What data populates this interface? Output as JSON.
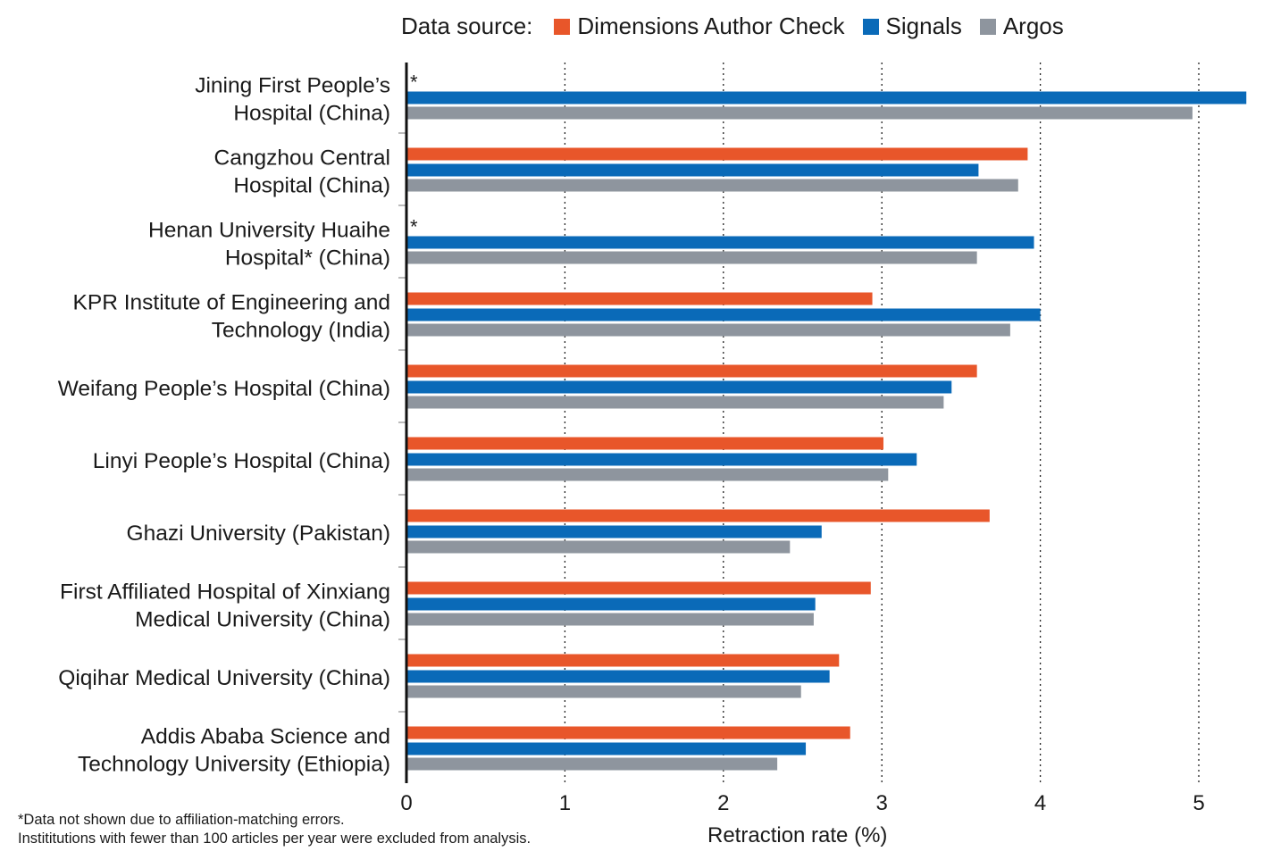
{
  "chart_data": {
    "type": "bar",
    "orientation": "horizontal",
    "legend_title": "Data source:",
    "legend_position": "top",
    "xlabel": "Retraction rate (%)",
    "xlim": [
      0,
      5.3
    ],
    "xticks": [
      "0",
      "1",
      "2",
      "3",
      "4",
      "5"
    ],
    "grid": "vertical dotted",
    "categories": [
      [
        "Jining First People’s",
        "Hospital (China)"
      ],
      [
        "Cangzhou Central",
        "Hospital (China)"
      ],
      [
        "Henan University Huaihe",
        "Hospital* (China)"
      ],
      [
        "KPR Institute of Engineering and",
        "Technology (India)"
      ],
      [
        "Weifang People’s Hospital (China)"
      ],
      [
        "Linyi People’s Hospital (China)"
      ],
      [
        "Ghazi University (Pakistan)"
      ],
      [
        "First Affiliated Hospital of Xinxiang",
        "Medical University (China)"
      ],
      [
        "Qiqihar Medical University (China)"
      ],
      [
        "Addis Ababa Science and",
        "Technology University (Ethiopia)"
      ]
    ],
    "series": [
      {
        "name": "Dimensions Author Check",
        "color": "#e8562a",
        "values": [
          null,
          3.92,
          null,
          2.94,
          3.6,
          3.01,
          3.68,
          2.93,
          2.73,
          2.8
        ]
      },
      {
        "name": "Signals",
        "color": "#0a6ab8",
        "values": [
          5.3,
          3.61,
          3.96,
          4.0,
          3.44,
          3.22,
          2.62,
          2.58,
          2.67,
          2.52
        ]
      },
      {
        "name": "Argos",
        "color": "#8e959e",
        "values": [
          4.96,
          3.86,
          3.6,
          3.81,
          3.39,
          3.04,
          2.42,
          2.57,
          2.49,
          2.34
        ]
      }
    ],
    "missing_marker": "*",
    "footnotes": [
      "*Data not shown due to affiliation-matching errors.",
      "Instititutions with fewer than 100 articles per year were excluded from analysis."
    ]
  }
}
